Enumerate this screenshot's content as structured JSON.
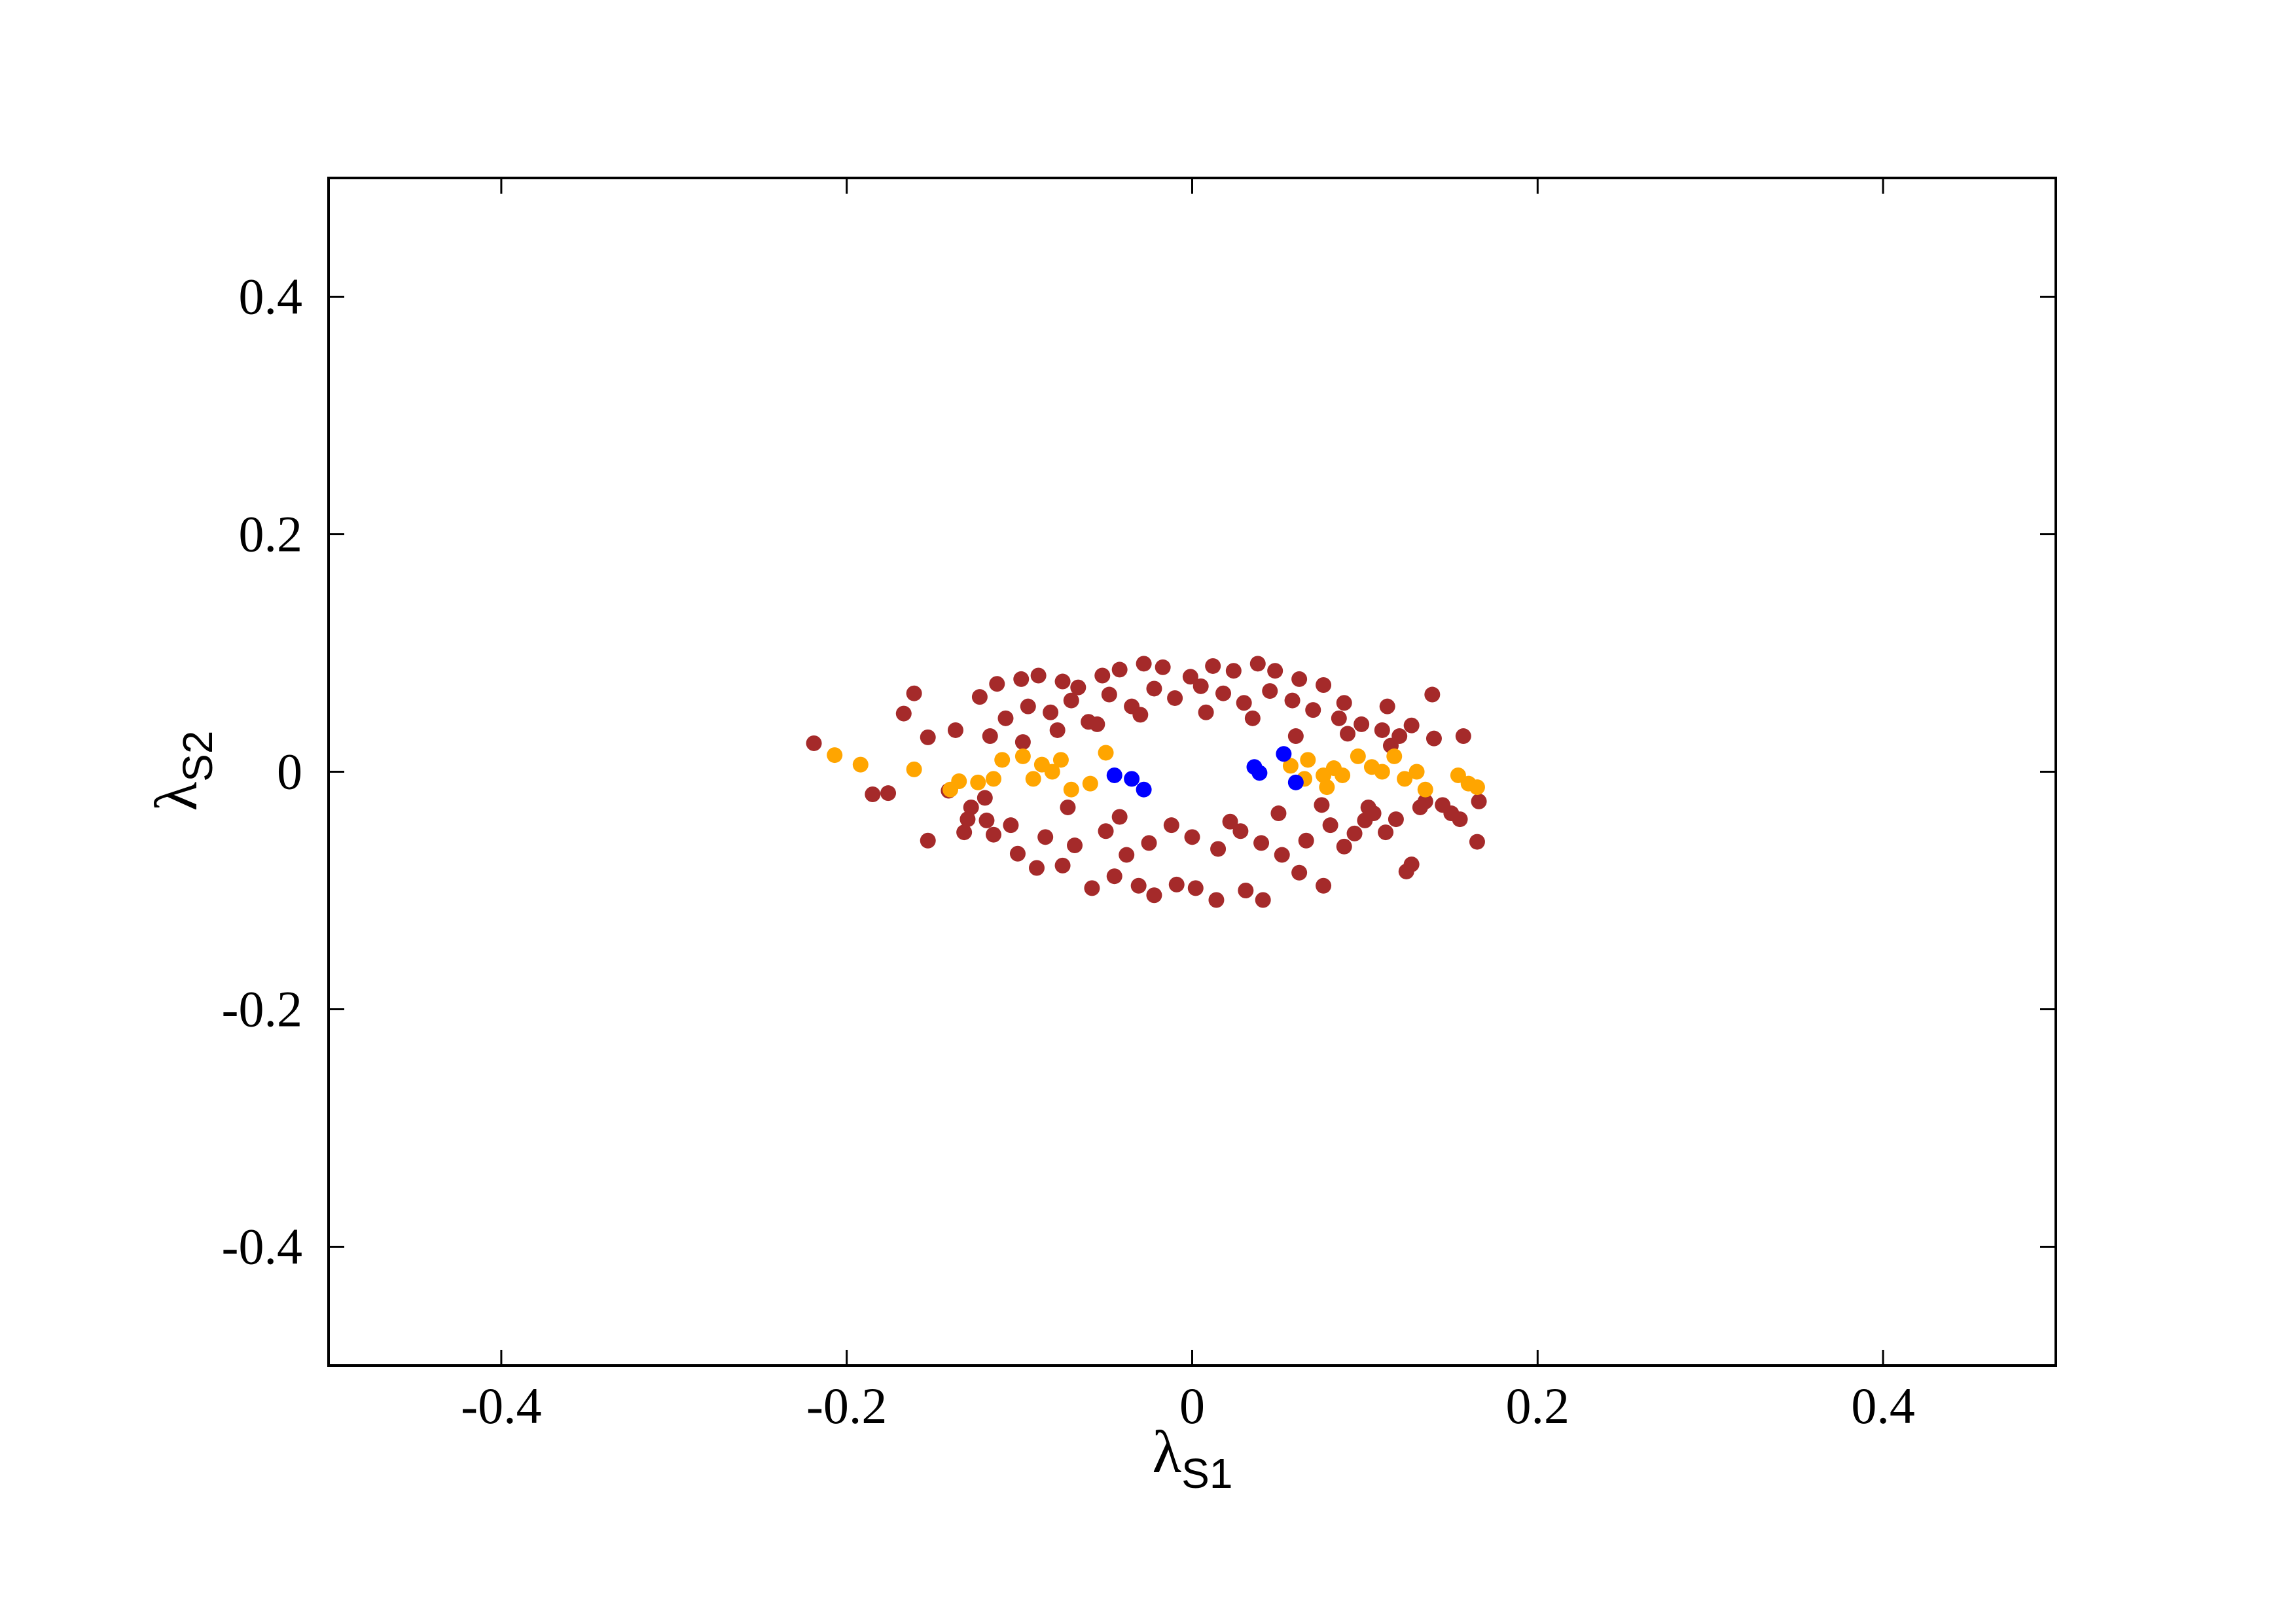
{
  "chart_data": {
    "type": "scatter",
    "xlabel": {
      "symbol": "λ",
      "subscript": "S1"
    },
    "ylabel": {
      "symbol": "λ",
      "subscript": "S2"
    },
    "xlim": [
      -0.5,
      0.5
    ],
    "ylim": [
      -0.5,
      0.5
    ],
    "xticks": [
      -0.4,
      -0.2,
      0,
      0.2,
      0.4
    ],
    "yticks": [
      -0.4,
      -0.2,
      0,
      0.2,
      0.4
    ],
    "series": [
      {
        "color": "#a52a2a",
        "x": [
          -0.219,
          -0.167,
          -0.161,
          -0.185,
          -0.176,
          -0.153,
          -0.153,
          -0.141,
          -0.132,
          -0.119,
          -0.123,
          -0.113,
          -0.117,
          -0.099,
          -0.089,
          -0.075,
          -0.066,
          -0.052,
          -0.042,
          -0.028,
          -0.017,
          -0.001,
          0.012,
          0.024,
          0.038,
          0.048,
          0.062,
          0.076,
          0.088,
          0.113,
          0.139,
          0.157,
          0.127,
          0.166,
          0.165,
          0.155,
          0.135,
          0.127,
          0.124,
          0.112,
          0.1,
          0.088,
          0.076,
          0.062,
          0.041,
          0.031,
          0.014,
          0.002,
          -0.009,
          -0.022,
          -0.031,
          -0.045,
          -0.058,
          -0.075,
          -0.09,
          -0.101,
          -0.115,
          -0.137,
          -0.128,
          -0.108,
          -0.095,
          -0.082,
          -0.07,
          -0.06,
          -0.048,
          -0.035,
          -0.022,
          -0.01,
          0.005,
          0.018,
          0.03,
          0.045,
          0.058,
          0.07,
          0.085,
          0.098,
          0.11,
          0.12,
          0.14,
          0.15,
          -0.13,
          -0.105,
          -0.085,
          -0.068,
          -0.05,
          -0.038,
          -0.025,
          -0.012,
          0.0,
          0.015,
          0.028,
          0.04,
          0.052,
          0.066,
          0.08,
          0.094,
          0.105,
          0.118,
          0.132,
          0.145,
          -0.098,
          -0.078,
          -0.055,
          -0.03,
          0.008,
          0.035,
          0.06,
          0.09,
          0.115,
          -0.12,
          -0.072,
          -0.042,
          0.022,
          0.05,
          0.075,
          0.102
        ],
        "values": [
          0.024,
          0.049,
          0.066,
          -0.019,
          -0.018,
          -0.058,
          0.029,
          -0.016,
          -0.051,
          -0.041,
          0.063,
          0.074,
          0.03,
          0.078,
          0.081,
          0.076,
          0.071,
          0.081,
          0.086,
          0.091,
          0.088,
          0.08,
          0.089,
          0.085,
          0.091,
          0.085,
          0.078,
          0.073,
          0.058,
          0.055,
          0.065,
          0.03,
          0.039,
          -0.025,
          -0.059,
          -0.04,
          -0.025,
          -0.078,
          -0.084,
          -0.051,
          -0.041,
          -0.063,
          -0.096,
          -0.085,
          -0.108,
          -0.1,
          -0.108,
          -0.098,
          -0.095,
          -0.104,
          -0.096,
          -0.088,
          -0.098,
          -0.079,
          -0.081,
          -0.069,
          -0.053,
          0.035,
          -0.03,
          0.045,
          0.055,
          0.05,
          0.06,
          0.042,
          0.065,
          0.055,
          0.07,
          0.062,
          0.072,
          0.066,
          0.058,
          0.068,
          0.06,
          0.052,
          0.045,
          0.04,
          0.035,
          0.03,
          0.028,
          -0.035,
          -0.04,
          -0.045,
          -0.055,
          -0.062,
          -0.05,
          -0.07,
          -0.06,
          -0.045,
          -0.055,
          -0.065,
          -0.05,
          -0.06,
          -0.07,
          -0.058,
          -0.045,
          -0.052,
          -0.035,
          -0.04,
          -0.03,
          -0.028,
          0.025,
          0.035,
          0.04,
          0.048,
          0.05,
          0.045,
          0.03,
          0.032,
          0.022,
          -0.022,
          -0.03,
          -0.038,
          -0.042,
          -0.035,
          -0.028,
          -0.03
        ]
      },
      {
        "color": "#ffa500",
        "x": [
          -0.207,
          -0.192,
          -0.161,
          -0.14,
          -0.135,
          -0.124,
          -0.115,
          -0.11,
          -0.098,
          -0.092,
          -0.087,
          -0.081,
          -0.076,
          -0.07,
          -0.059,
          -0.05,
          0.057,
          0.067,
          0.076,
          0.082,
          0.087,
          0.096,
          0.104,
          0.11,
          0.117,
          0.123,
          0.13,
          0.135,
          0.154,
          0.16,
          0.165,
          0.078,
          0.065
        ],
        "values": [
          0.014,
          0.006,
          0.002,
          -0.015,
          -0.008,
          -0.009,
          -0.006,
          0.01,
          0.013,
          -0.006,
          0.006,
          0.0,
          0.01,
          -0.015,
          -0.01,
          0.016,
          0.005,
          0.01,
          -0.003,
          0.003,
          -0.003,
          0.013,
          0.004,
          0.0,
          0.013,
          -0.006,
          0.0,
          -0.015,
          -0.003,
          -0.01,
          -0.013,
          -0.013,
          -0.006
        ]
      },
      {
        "color": "#0000ff",
        "x": [
          -0.045,
          -0.035,
          -0.028,
          0.036,
          0.039,
          0.053,
          0.06
        ],
        "values": [
          -0.003,
          -0.006,
          -0.015,
          0.004,
          -0.001,
          0.015,
          -0.009
        ]
      }
    ]
  }
}
